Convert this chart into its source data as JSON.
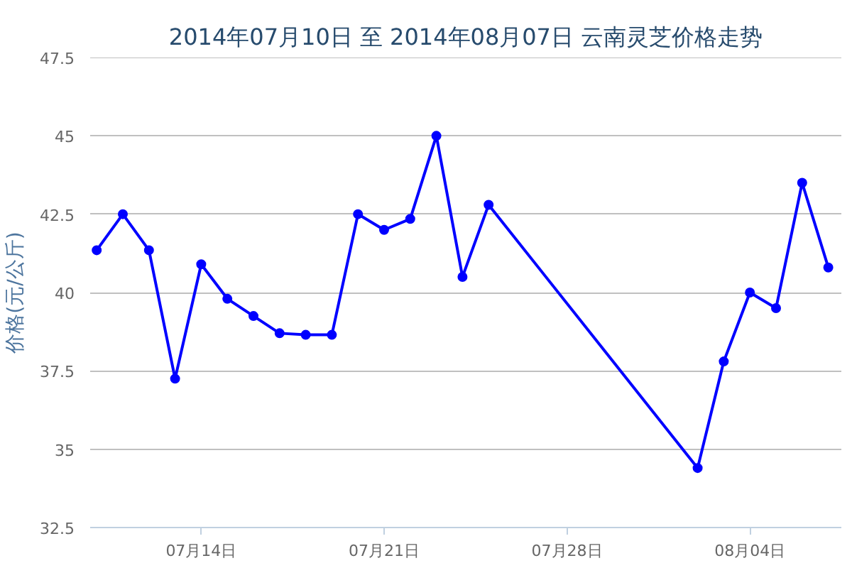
{
  "chart_data": {
    "type": "line",
    "title": "2014年07月10日 至 2014年08月07日 云南灵芝价格走势",
    "ylabel": "价格(元/公斤)",
    "x": [
      "2014-07-10",
      "2014-07-11",
      "2014-07-12",
      "2014-07-13",
      "2014-07-14",
      "2014-07-15",
      "2014-07-16",
      "2014-07-17",
      "2014-07-18",
      "2014-07-19",
      "2014-07-20",
      "2014-07-21",
      "2014-07-22",
      "2014-07-23",
      "2014-07-24",
      "2014-07-25",
      "2014-08-02",
      "2014-08-03",
      "2014-08-04",
      "2014-08-05",
      "2014-08-06",
      "2014-08-07"
    ],
    "series": [
      {
        "color": "#0000ff",
        "values": [
          41.35,
          42.5,
          41.35,
          37.25,
          40.9,
          39.8,
          39.25,
          38.7,
          38.65,
          38.65,
          42.5,
          42.0,
          42.35,
          45.0,
          40.5,
          42.8,
          34.4,
          37.8,
          40.0,
          39.5,
          43.5,
          40.8
        ]
      }
    ],
    "xlim": [
      "2014-07-09T18:00",
      "2014-08-07T12:00"
    ],
    "xticks": [
      {
        "value": "2014-07-14",
        "label": "07月14日"
      },
      {
        "value": "2014-07-21",
        "label": "07月21日"
      },
      {
        "value": "2014-07-28",
        "label": "07月28日"
      },
      {
        "value": "2014-08-04",
        "label": "08月04日"
      }
    ],
    "ylim": [
      32.5,
      47.5
    ],
    "yticks": [
      32.5,
      35,
      37.5,
      40,
      42.5,
      45,
      47.5
    ],
    "grid": "y",
    "marker": "circle",
    "line_style": "solid"
  }
}
